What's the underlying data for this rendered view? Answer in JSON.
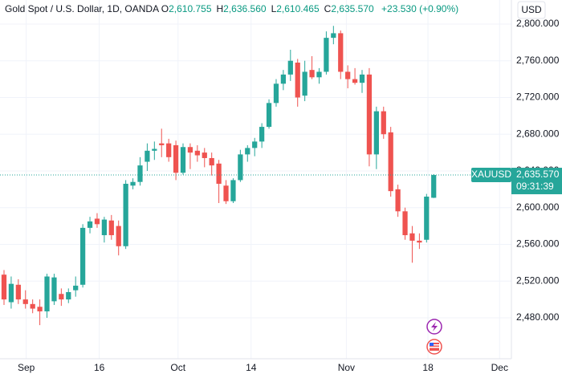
{
  "chart_data": {
    "type": "candlestick",
    "title": "Gold Spot / U.S. Dollar, 1D, OANDA",
    "ohlc_legend": [
      {
        "key": "O",
        "value": "2,610.755"
      },
      {
        "key": "H",
        "value": "2,636.560"
      },
      {
        "key": "L",
        "value": "2,610.465"
      },
      {
        "key": "C",
        "value": "2,635.570"
      }
    ],
    "change": "+23.530 (+0.90%)",
    "currency": "USD",
    "price_tag": {
      "symbol": "XAUUSD",
      "price": "2,635.570",
      "countdown": "09:31:39"
    },
    "up_color": "#26a69a",
    "down_color": "#ef5350",
    "grid": true,
    "x": [
      0,
      1,
      2,
      3,
      4,
      5,
      6,
      7,
      8,
      9,
      10,
      11,
      12,
      13,
      14,
      15,
      16,
      17,
      18,
      19,
      20,
      21,
      22,
      23,
      24,
      25,
      26,
      27,
      28,
      29,
      30,
      31,
      32,
      33,
      34,
      35,
      36,
      37,
      38,
      39,
      40,
      41,
      42,
      43,
      44,
      45,
      46,
      47,
      48,
      49,
      50,
      51,
      52,
      53,
      54,
      55,
      56,
      57,
      58,
      59,
      60
    ],
    "open": [
      2527,
      2497,
      2516,
      2500,
      2495,
      2492,
      2487,
      2498,
      2506,
      2500,
      2510,
      2516,
      2578,
      2588,
      2570,
      2586,
      2580,
      2558,
      2624,
      2628,
      2650,
      2662,
      2670,
      2670,
      2668,
      2638,
      2666,
      2662,
      2660,
      2654,
      2648,
      2624,
      2607,
      2630,
      2658,
      2665,
      2672,
      2688,
      2714,
      2735,
      2745,
      2758,
      2722,
      2750,
      2742,
      2748,
      2785,
      2790,
      2748,
      2740,
      2736,
      2745,
      2658,
      2705,
      2682,
      2620,
      2596,
      2572,
      2564,
      2565,
      2610.755
    ],
    "high": [
      2532,
      2525,
      2522,
      2510,
      2500,
      2500,
      2528,
      2528,
      2512,
      2512,
      2525,
      2582,
      2590,
      2594,
      2590,
      2592,
      2586,
      2630,
      2632,
      2655,
      2670,
      2672,
      2686,
      2675,
      2673,
      2670,
      2670,
      2668,
      2665,
      2660,
      2652,
      2630,
      2632,
      2663,
      2668,
      2676,
      2692,
      2718,
      2740,
      2750,
      2772,
      2762,
      2760,
      2765,
      2752,
      2792,
      2798,
      2793,
      2755,
      2752,
      2750,
      2752,
      2710,
      2710,
      2688,
      2625,
      2600,
      2580,
      2572,
      2615,
      2636.56
    ],
    "low": [
      2494,
      2490,
      2495,
      2490,
      2485,
      2472,
      2480,
      2494,
      2493,
      2496,
      2503,
      2513,
      2572,
      2578,
      2562,
      2565,
      2548,
      2555,
      2620,
      2624,
      2640,
      2652,
      2655,
      2650,
      2630,
      2636,
      2642,
      2650,
      2644,
      2635,
      2605,
      2604,
      2605,
      2628,
      2650,
      2656,
      2665,
      2686,
      2710,
      2728,
      2738,
      2710,
      2716,
      2740,
      2735,
      2745,
      2778,
      2740,
      2730,
      2734,
      2725,
      2645,
      2642,
      2675,
      2612,
      2590,
      2565,
      2540,
      2555,
      2562,
      2610.465
    ],
    "close": [
      2500,
      2517,
      2500,
      2495,
      2490,
      2487,
      2525,
      2524,
      2500,
      2508,
      2515,
      2578,
      2585,
      2582,
      2587,
      2570,
      2558,
      2626,
      2628,
      2646,
      2662,
      2664,
      2668,
      2655,
      2638,
      2666,
      2660,
      2657,
      2654,
      2646,
      2626,
      2607,
      2630,
      2658,
      2665,
      2672,
      2688,
      2714,
      2735,
      2745,
      2760,
      2720,
      2748,
      2742,
      2748,
      2785,
      2790,
      2748,
      2740,
      2736,
      2745,
      2658,
      2705,
      2680,
      2618,
      2596,
      2570,
      2564,
      2562,
      2612,
      2635.57
    ],
    "xlim": [
      -0.56,
      70.85
    ],
    "xticks": [
      {
        "value": 3.1,
        "label": "Sep"
      },
      {
        "value": 13.3,
        "label": "16"
      },
      {
        "value": 24.3,
        "label": "Oct"
      },
      {
        "value": 34.5,
        "label": "14"
      },
      {
        "value": 47.8,
        "label": "Nov"
      },
      {
        "value": 59.2,
        "label": "18"
      },
      {
        "value": 69.2,
        "label": "Dec"
      }
    ],
    "ylim": [
      2435.4,
      2826.2
    ],
    "yticks": [
      {
        "value": 2480,
        "label": "2,480.000"
      },
      {
        "value": 2520,
        "label": "2,520.000"
      },
      {
        "value": 2560,
        "label": "2,560.000"
      },
      {
        "value": 2600,
        "label": "2,600.000"
      },
      {
        "value": 2640,
        "label": "2,640.000"
      },
      {
        "value": 2680,
        "label": "2,680.000"
      },
      {
        "value": 2720,
        "label": "2,720.000"
      },
      {
        "value": 2760,
        "label": "2,760.000"
      },
      {
        "value": 2800,
        "label": "2,800.000"
      }
    ]
  }
}
